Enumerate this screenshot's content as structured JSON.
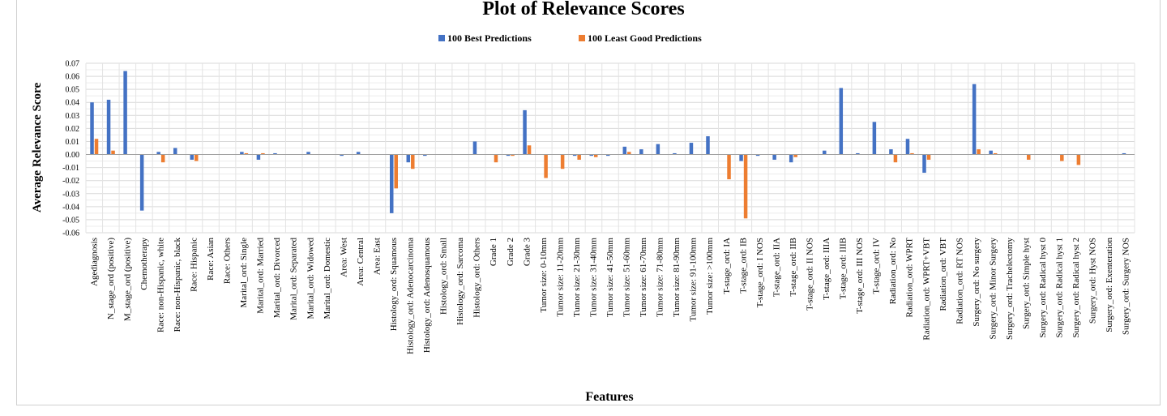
{
  "chart_data": {
    "type": "bar",
    "title": "Plot of Relevance Scores",
    "xlabel": "Features",
    "ylabel": "Average Relevance Score",
    "ylim": [
      -0.06,
      0.07
    ],
    "yticks": [
      -0.06,
      -0.05,
      -0.04,
      -0.03,
      -0.02,
      -0.01,
      0.0,
      0.01,
      0.02,
      0.03,
      0.04,
      0.05,
      0.06,
      0.07
    ],
    "ytick_labels": [
      "-0.06",
      "-0.05",
      "-0.04",
      "-0.03",
      "-0.02",
      "-0.01",
      "0.00",
      "0.01",
      "0.02",
      "0.03",
      "0.04",
      "0.05",
      "0.06",
      "0.07"
    ],
    "grid": true,
    "legend_position": "top-center",
    "categories": [
      "Agediagnosis",
      "N_stage_ord (positive)",
      "M_stage_ord (positive)",
      "Chemotherapy",
      "Race: non-Hispanic, white",
      "Race: non-Hispanic, black",
      "Race: Hispanic",
      "Race: Asian",
      "Race: Others",
      "Marital_ord: Single",
      "Marital_ord: Married",
      "Marital_ord: Divorced",
      "Marital_ord: Separated",
      "Marital_ord: Widowed",
      "Marital_ord: Domestic",
      "Area: West",
      "Area: Central",
      "Area: East",
      "Histology_ord: Squamous",
      "Histology_ord: Adenocarcinoma",
      "Histology_ord: Adenosquamous",
      "Histology_ord: Small",
      "Histology_ord: Sarcoma",
      "Histology_ord: Others",
      "Grade 1",
      "Grade 2",
      "Grade 3",
      "Tumor size: 0-10mm",
      "Tumor size: 11-20mm",
      "Tumor size: 21-30mm",
      "Tumor size: 31-40mm",
      "Tumor size: 41-50mm",
      "Tumor size: 51-60mm",
      "Tumor size: 61-70mm",
      "Tumor size: 71-80mm",
      "Tumor size: 81-90mm",
      "Tumor size: 91-100mm",
      "Tumor size: >100mm",
      "T-stage_ord: IA",
      "T-stage_ord: IB",
      "T-stage_ord: I NOS",
      "T-stage_ord: IIA",
      "T-stage_ord: IIB",
      "T-stage_ord: II NOS",
      "T-stage_ord: IIIA",
      "T-stage_ord: IIIB",
      "T-stage_ord: III NOS",
      "T-stage_ord: IV",
      "Radiation_ord: No",
      "Radiation_ord: WPRT",
      "Radiation_ord: WPRT+VBT",
      "Radiation_ord: VBT",
      "Radiation_ord: RT NOS",
      "Surgery_ord: No surgery",
      "Surgery_ord: Minor Surgery",
      "Surgery_ord: Trachelectomy",
      "Surgery_ord: Simple hyst",
      "Surgery_ord: Radical hyst 0",
      "Surgery_ord: Radical hyst 1",
      "Surgery_ord: Radical hyst 2",
      "Surgery_ord: Hyst NOS",
      "Surgery_ord: Exenteration",
      "Surgery_ord: Surgery NOS"
    ],
    "series": [
      {
        "name": "100 Best Predictions",
        "color": "#4472C4",
        "values": [
          0.04,
          0.042,
          0.064,
          -0.043,
          0.002,
          0.005,
          -0.004,
          0.0,
          0.0,
          0.002,
          -0.004,
          0.001,
          0.0,
          0.002,
          0.0,
          -0.001,
          0.002,
          0.0,
          -0.045,
          -0.006,
          -0.001,
          0.0,
          0.0,
          0.01,
          0.0,
          -0.001,
          0.034,
          0.0,
          0.0,
          -0.001,
          -0.001,
          -0.001,
          0.006,
          0.004,
          0.008,
          0.001,
          0.009,
          0.014,
          0.0,
          -0.005,
          -0.001,
          -0.004,
          -0.006,
          0.0,
          0.003,
          0.051,
          0.001,
          0.025,
          0.004,
          0.012,
          -0.014,
          0.0,
          0.0,
          0.054,
          0.003,
          0.0,
          0.0,
          0.0,
          0.0,
          0.0,
          0.0,
          0.0,
          0.001
        ]
      },
      {
        "name": "100 Least Good Predictions",
        "color": "#ED7D31",
        "values": [
          0.012,
          0.003,
          0.0,
          0.0,
          -0.006,
          0.0,
          -0.005,
          0.0,
          0.0,
          0.001,
          0.001,
          0.0,
          0.0,
          0.0,
          0.0,
          0.0,
          0.0,
          0.0,
          -0.026,
          -0.011,
          0.0,
          0.0,
          0.0,
          0.0,
          -0.006,
          -0.001,
          0.007,
          -0.018,
          -0.011,
          -0.004,
          -0.002,
          0.0,
          0.002,
          0.0,
          0.0,
          0.0,
          0.0,
          0.0,
          -0.019,
          -0.049,
          0.0,
          0.0,
          -0.002,
          0.0,
          0.0,
          0.0,
          0.0,
          0.0,
          -0.006,
          0.001,
          -0.004,
          0.0,
          0.0,
          0.004,
          0.001,
          0.0,
          -0.004,
          0.0,
          -0.005,
          -0.008,
          0.0,
          0.0,
          0.0
        ]
      }
    ]
  }
}
